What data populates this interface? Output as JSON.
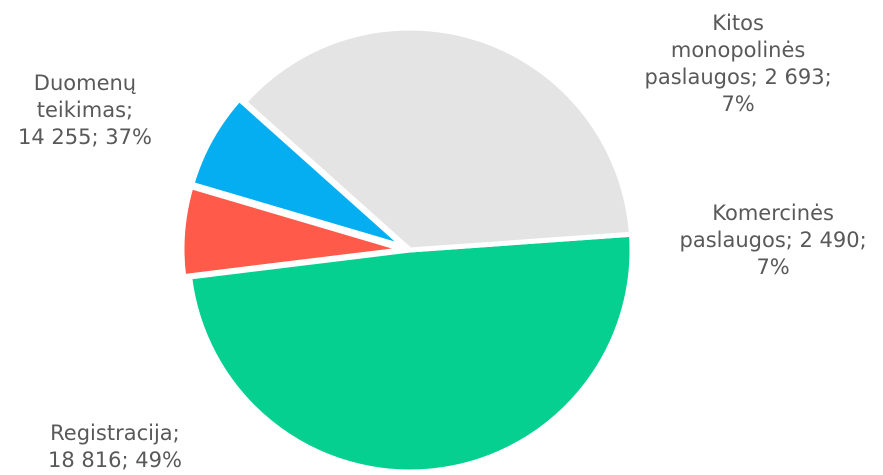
{
  "chart_data": {
    "type": "pie",
    "slices": [
      {
        "name": "Registracija",
        "value": 18816,
        "percent": "49%",
        "color": "#06d090",
        "label_lines": [
          "Registracija;",
          "18 816; 49%"
        ]
      },
      {
        "name": "Duomenų teikimas",
        "value": 14255,
        "percent": "37%",
        "color": "#e4e4e4",
        "label_lines": [
          "Duomenų",
          "teikimas;",
          "14 255; 37%"
        ]
      },
      {
        "name": "Kitos monopolinės paslaugos",
        "value": 2693,
        "percent": "7%",
        "color": "#04aef0",
        "label_lines": [
          "Kitos",
          "monopolinės",
          "paslaugos; 2 693;",
          "7%"
        ]
      },
      {
        "name": "Komercinės paslaugos",
        "value": 2490,
        "percent": "7%",
        "color": "#ff5a4a",
        "label_lines": [
          "Komercinės",
          "paslaugos; 2 490;",
          "7%"
        ]
      }
    ]
  }
}
